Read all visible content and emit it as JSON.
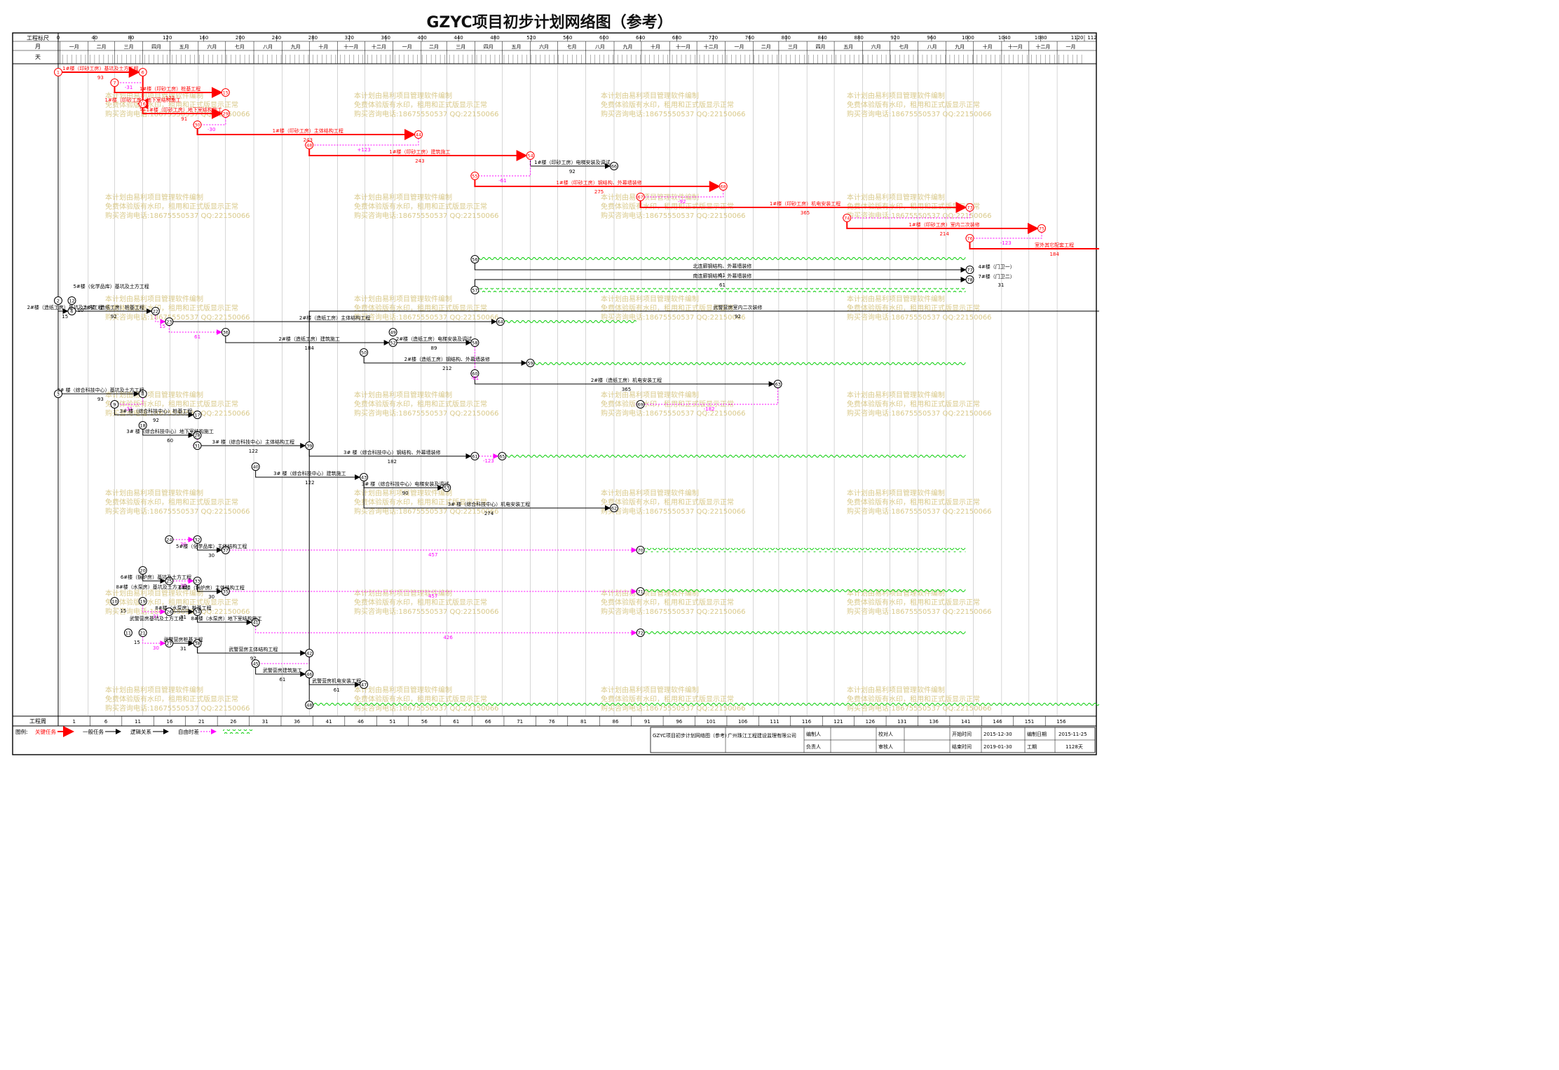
{
  "title": "GZYC项目初步计划网络图（参考）",
  "scale": {
    "label": "工程标尺",
    "ticks": [
      "0",
      "40",
      "80",
      "120",
      "160",
      "200",
      "240",
      "280",
      "320",
      "360",
      "400",
      "440",
      "480",
      "520",
      "560",
      "600",
      "640",
      "680",
      "720",
      "760",
      "800",
      "840",
      "880",
      "920",
      "960",
      "1000",
      "1040",
      "1080",
      "1120",
      "112"
    ]
  },
  "months": {
    "label": "月",
    "names": [
      "一月",
      "二月",
      "三月",
      "四月",
      "五月",
      "六月",
      "七月",
      "八月",
      "九月",
      "十月",
      "十一月",
      "十二月",
      "一月",
      "二月",
      "三月",
      "四月",
      "五月",
      "六月",
      "七月",
      "八月",
      "九月",
      "十月",
      "十一月",
      "十二月",
      "一月",
      "二月",
      "三月",
      "四月",
      "五月",
      "六月",
      "七月",
      "八月",
      "九月",
      "十月",
      "十一月",
      "十二月",
      "一月"
    ]
  },
  "days": {
    "label": "天"
  },
  "weeks": {
    "label": "工程周",
    "values": [
      "1",
      "6",
      "11",
      "16",
      "21",
      "26",
      "31",
      "36",
      "41",
      "46",
      "51",
      "56",
      "61",
      "66",
      "71",
      "76",
      "81",
      "86",
      "91",
      "96",
      "101",
      "106",
      "111",
      "116",
      "121",
      "126",
      "131",
      "136",
      "141",
      "146",
      "151",
      "156"
    ]
  },
  "watermark": [
    "本计划由易利项目管理软件编制",
    "免费体验版有水印，租用和正式版显示正常",
    "购买咨询电话:18675550537 QQ:22150066"
  ],
  "colors": {
    "critical": "#ff0000",
    "normal": "#000000",
    "logic": "#000000",
    "free_float": "#ff00ff",
    "wave": "#00cc00"
  },
  "nodes": [
    "1",
    "2",
    "3",
    "6",
    "7",
    "8",
    "9",
    "10",
    "11",
    "12",
    "15",
    "16",
    "17",
    "18",
    "19",
    "20",
    "21",
    "22",
    "23",
    "24",
    "25",
    "26",
    "27",
    "28",
    "29",
    "30",
    "31",
    "32",
    "33",
    "34",
    "35",
    "36",
    "37",
    "38",
    "39",
    "40",
    "41",
    "42",
    "43",
    "44",
    "45",
    "46",
    "47",
    "48",
    "49",
    "50",
    "51",
    "52",
    "53",
    "54",
    "55",
    "56",
    "57",
    "58",
    "59",
    "60",
    "61",
    "62",
    "63",
    "64",
    "65",
    "66",
    "67",
    "68",
    "69",
    "70",
    "71",
    "72",
    "73",
    "74",
    "75",
    "76",
    "77",
    "78",
    "79",
    "80"
  ],
  "activities": [
    {
      "name": "1#楼（印砂工房）基坑及土方工程",
      "duration": "93",
      "critical": true
    },
    {
      "name": "1#楼（印砂工房）桩基工程",
      "duration": "122",
      "float": "-31",
      "critical": true
    },
    {
      "name": "1#楼（印砂工房）地下室结构施工",
      "duration": "91",
      "float": "-32",
      "critical": true
    },
    {
      "name": "1#楼（印砂工房）主体结构工程",
      "duration": "243",
      "float": "-30",
      "critical": true
    },
    {
      "name": "1#楼（印砂工房）建筑施工",
      "duration": "243",
      "float": "+123",
      "critical": true
    },
    {
      "name": "1#楼（印砂工房）电梯安装及调试",
      "duration": "92",
      "critical": false
    },
    {
      "name": "1#楼（印砂工房）钢结构、外幕墙装修",
      "duration": "275",
      "float": "-61",
      "critical": true
    },
    {
      "name": "1#楼（印砂工房）机电安装工程",
      "duration": "365",
      "float": "-92",
      "critical": true
    },
    {
      "name": "1#楼（印砂工房）室内二次装修",
      "duration": "214",
      "critical": true
    },
    {
      "name": "室外其它配套工程",
      "duration": "184",
      "float": "-123",
      "critical": true
    },
    {
      "name": "场地清理及整体竣工验收",
      "duration": "30",
      "critical": true
    },
    {
      "name": "北连廊钢结构、外幕墙装修",
      "duration": "61",
      "critical": false
    },
    {
      "name": "南连廊钢结构、外幕墙装修",
      "duration": "61",
      "critical": false
    },
    {
      "name": "4#楼（门卫一）",
      "critical": false
    },
    {
      "name": "7#楼（门卫二）",
      "duration": "31",
      "critical": false
    },
    {
      "name": "2#楼（造纸工房）基坑及土方工程",
      "duration": "15",
      "critical": false
    },
    {
      "name": "2#楼（造纸工房）桩基工程",
      "duration": "92",
      "critical": false
    },
    {
      "name": "2#楼（造纸工房）主体结构工程",
      "float": "15",
      "critical": false
    },
    {
      "name": "2#楼（造纸工房）建筑施工",
      "duration": "184",
      "float": "61",
      "critical": false
    },
    {
      "name": "2#楼（造纸工房）电梯安装及调试",
      "duration": "89",
      "critical": false
    },
    {
      "name": "2#楼（造纸工房）钢结构、外幕墙装修",
      "duration": "212",
      "float": "-61",
      "critical": false
    },
    {
      "name": "2#楼（造纸工房）机电安装工程",
      "duration": "365",
      "float": "-61",
      "critical": false
    },
    {
      "name": "2#楼（造纸工房）室内二次装修",
      "duration": "212",
      "float": "-182",
      "critical": false
    },
    {
      "name": "3# 楼（综合科技中心）基坑及土方工程",
      "duration": "93",
      "critical": false
    },
    {
      "name": "3# 楼（综合科技中心）桩基工程",
      "duration": "92",
      "float": "-31",
      "critical": false
    },
    {
      "name": "3# 楼（综合科技中心）地下室结构施工",
      "duration": "60",
      "critical": false
    },
    {
      "name": "3# 楼（综合科技中心）主体结构工程",
      "duration": "122",
      "critical": false
    },
    {
      "name": "3# 楼（综合科技中心）钢结构、外幕墙装修",
      "duration": "182",
      "critical": false
    },
    {
      "name": "3# 楼（综合科技中心）室内二次装修",
      "duration": "153",
      "float": "-123",
      "critical": false
    },
    {
      "name": "3# 楼（综合科技中心）建筑施工",
      "duration": "122",
      "float": "30",
      "critical": false
    },
    {
      "name": "3# 楼（综合科技中心）电梯安装及调试",
      "duration": "90",
      "critical": false
    },
    {
      "name": "3# 楼（综合科技中心）机电安装工程",
      "duration": "274",
      "critical": false
    },
    {
      "name": "5#楼（化学品库）基坑及土方工程",
      "duration": "10",
      "critical": false
    },
    {
      "name": "5#楼（化学品库）桩基工程",
      "duration": "31",
      "float": "30",
      "critical": false
    },
    {
      "name": "5#楼（化学品库）主体结构工程",
      "duration": "30",
      "critical": false
    },
    {
      "name": "5#楼（化学品库）机电安装工程",
      "duration": "31",
      "float": "457",
      "critical": false
    },
    {
      "name": "6#楼（锅炉房）基坑及土方工程",
      "critical": false
    },
    {
      "name": "6#楼（锅炉房）桩基工程",
      "duration": "31",
      "float": "30",
      "critical": false
    },
    {
      "name": "6#楼（锅炉房）主体结构工程",
      "duration": "30",
      "critical": false
    },
    {
      "name": "6#楼（锅炉房）机电安装工程",
      "duration": "61",
      "float": "457",
      "critical": false
    },
    {
      "name": "8#楼（水泵房）基坑及土方工程",
      "duration": "15",
      "critical": false
    },
    {
      "name": "8#楼（水泵房）桩基工程",
      "duration": "31",
      "float": "31",
      "critical": false
    },
    {
      "name": "8#楼（水泵房）地下室结构施工",
      "critical": false
    },
    {
      "name": "8#楼（水泵房）机电安装工程",
      "duration": "61",
      "float": "426",
      "critical": false
    },
    {
      "name": "武警营房基坑及土方工程",
      "duration": "15",
      "critical": false
    },
    {
      "name": "武警营房桩基工程",
      "duration": "31",
      "float": "30",
      "critical": false
    },
    {
      "name": "武警营房主体结构工程",
      "duration": "92",
      "critical": false
    },
    {
      "name": "武警营房建筑施工",
      "duration": "61",
      "critical": false
    },
    {
      "name": "武警营房机电安装工程",
      "duration": "61",
      "critical": false
    },
    {
      "name": "武警营房室内二次装修",
      "duration": "92",
      "critical": false
    }
  ],
  "legend": {
    "label": "图例:",
    "items": [
      {
        "label": "关键任务",
        "style": "critical"
      },
      {
        "label": "一般任务",
        "style": "normal"
      },
      {
        "label": "逻辑关系",
        "style": "logic"
      },
      {
        "label": "自由时差",
        "style": "float"
      }
    ]
  },
  "info": {
    "project_name": "GZYC项目初步计划网络图（参考）",
    "company": "广州珠江工程建设监理有限公司",
    "compiler_label": "编制人",
    "checker_label": "校对人",
    "start_label": "开始时间",
    "start_value": "2015-12-30",
    "compiled_date_label": "编制日期",
    "compiled_date_value": "2015-11-25",
    "responsible_label": "负责人",
    "reviewer_label": "审核人",
    "end_label": "结束时间",
    "end_value": "2019-01-30",
    "period_label": "工期",
    "period_value": "1128天"
  }
}
